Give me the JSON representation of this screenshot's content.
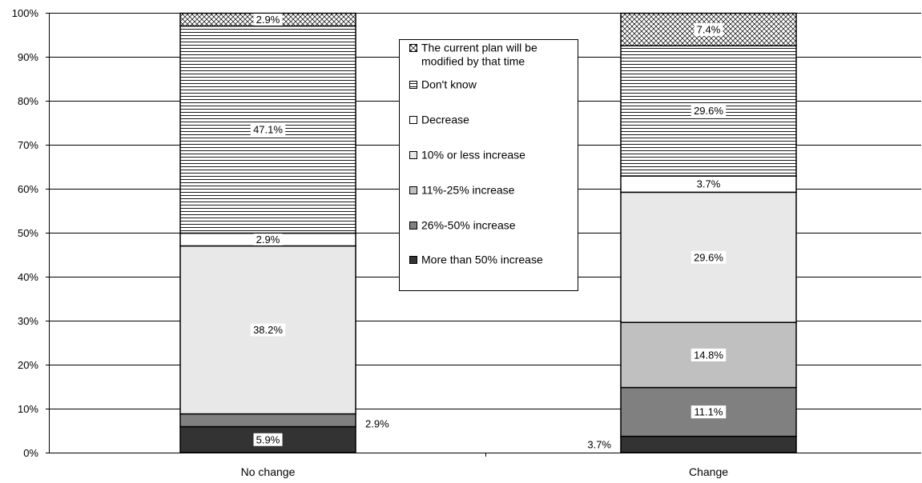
{
  "chart_data": {
    "type": "bar",
    "stacked": true,
    "categories": [
      "No change",
      "Change"
    ],
    "ylim": [
      0,
      100
    ],
    "yticks": [
      "0%",
      "10%",
      "20%",
      "30%",
      "40%",
      "50%",
      "60%",
      "70%",
      "80%",
      "90%",
      "100%"
    ],
    "grid": true,
    "legend_position": "center",
    "series": [
      {
        "name": "More than 50% increase",
        "values": [
          5.9,
          3.7
        ],
        "labels": [
          "5.9%",
          "3.7%"
        ],
        "color": "#333333"
      },
      {
        "name": "26%-50% increase",
        "values": [
          2.9,
          11.1
        ],
        "labels": [
          "2.9%",
          "11.1%"
        ],
        "color": "#808080"
      },
      {
        "name": "11%-25% increase",
        "values": [
          0,
          14.8
        ],
        "labels": [
          "",
          "14.8%"
        ],
        "color": "#c0c0c0"
      },
      {
        "name": "10% or less increase",
        "values": [
          38.2,
          29.6
        ],
        "labels": [
          "38.2%",
          "29.6%"
        ],
        "color": "#e8e8e8"
      },
      {
        "name": "Decrease",
        "values": [
          2.9,
          3.7
        ],
        "labels": [
          "2.9%",
          "3.7%"
        ],
        "color": "#ffffff"
      },
      {
        "name": "Don't know",
        "values": [
          47.1,
          29.6
        ],
        "labels": [
          "47.1%",
          "29.6%"
        ],
        "color": "#ffffff",
        "pattern": "horizontal-lines"
      },
      {
        "name": "The current plan will be modified by that time",
        "values": [
          2.9,
          7.4
        ],
        "labels": [
          "2.9%",
          "7.4%"
        ],
        "color": "#ffffff",
        "pattern": "crosshatch"
      }
    ]
  }
}
